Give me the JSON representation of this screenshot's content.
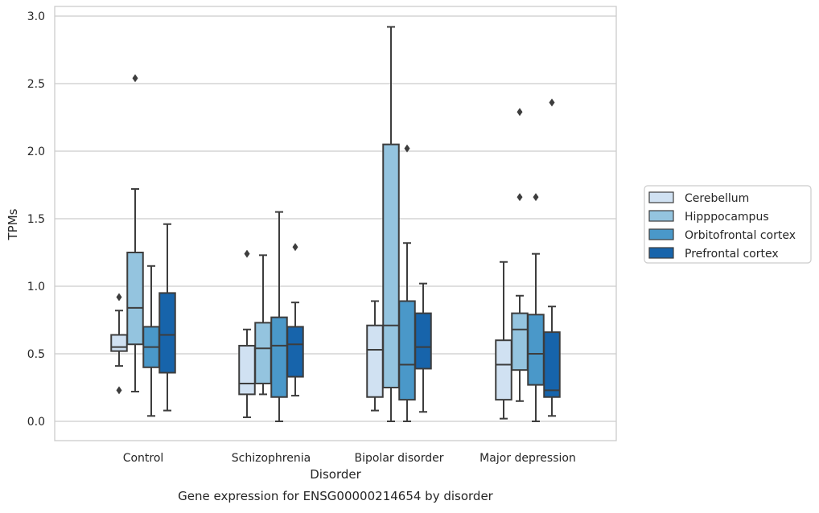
{
  "chart_data": {
    "type": "boxplot",
    "xlabel": "Disorder",
    "ylabel": "TPMs",
    "caption": "Gene expression for ENSG00000214654 by disorder",
    "ylim": [
      -0.14,
      3.07
    ],
    "yticks": [
      0.0,
      0.5,
      1.0,
      1.5,
      2.0,
      2.5,
      3.0
    ],
    "ytick_labels": [
      "0.0",
      "0.5",
      "1.0",
      "1.5",
      "2.0",
      "2.5",
      "3.0"
    ],
    "grid": "horizontal",
    "legend_position": "right",
    "categories": [
      "Control",
      "Schizophrenia",
      "Bipolar disorder",
      "Major depression"
    ],
    "series": [
      {
        "name": "Cerebellum",
        "color": "#d0e1f2",
        "boxes": [
          {
            "whisker_low": 0.41,
            "q1": 0.52,
            "median": 0.55,
            "q3": 0.64,
            "whisker_high": 0.82,
            "fliers": [
              0.92,
              0.23
            ]
          },
          {
            "whisker_low": 0.03,
            "q1": 0.2,
            "median": 0.28,
            "q3": 0.56,
            "whisker_high": 0.68,
            "fliers": [
              1.24
            ]
          },
          {
            "whisker_low": 0.08,
            "q1": 0.18,
            "median": 0.53,
            "q3": 0.71,
            "whisker_high": 0.89,
            "fliers": []
          },
          {
            "whisker_low": 0.02,
            "q1": 0.16,
            "median": 0.42,
            "q3": 0.6,
            "whisker_high": 1.18,
            "fliers": []
          }
        ]
      },
      {
        "name": "Hipppocampus",
        "color": "#94c4df",
        "boxes": [
          {
            "whisker_low": 0.22,
            "q1": 0.57,
            "median": 0.84,
            "q3": 1.25,
            "whisker_high": 1.72,
            "fliers": [
              2.54
            ]
          },
          {
            "whisker_low": 0.2,
            "q1": 0.28,
            "median": 0.54,
            "q3": 0.73,
            "whisker_high": 1.23,
            "fliers": []
          },
          {
            "whisker_low": 0.0,
            "q1": 0.25,
            "median": 0.71,
            "q3": 2.05,
            "whisker_high": 2.92,
            "fliers": []
          },
          {
            "whisker_low": 0.15,
            "q1": 0.38,
            "median": 0.68,
            "q3": 0.8,
            "whisker_high": 0.93,
            "fliers": [
              1.66,
              2.29
            ]
          }
        ]
      },
      {
        "name": "Orbitofrontal cortex",
        "color": "#4a98c9",
        "boxes": [
          {
            "whisker_low": 0.04,
            "q1": 0.4,
            "median": 0.55,
            "q3": 0.7,
            "whisker_high": 1.15,
            "fliers": []
          },
          {
            "whisker_low": 0.0,
            "q1": 0.18,
            "median": 0.56,
            "q3": 0.77,
            "whisker_high": 1.55,
            "fliers": []
          },
          {
            "whisker_low": 0.0,
            "q1": 0.16,
            "median": 0.42,
            "q3": 0.89,
            "whisker_high": 1.32,
            "fliers": [
              2.02
            ]
          },
          {
            "whisker_low": 0.0,
            "q1": 0.27,
            "median": 0.5,
            "q3": 0.79,
            "whisker_high": 1.24,
            "fliers": [
              1.66
            ]
          }
        ]
      },
      {
        "name": "Prefrontal cortex",
        "color": "#1764ab",
        "boxes": [
          {
            "whisker_low": 0.08,
            "q1": 0.36,
            "median": 0.64,
            "q3": 0.95,
            "whisker_high": 1.46,
            "fliers": []
          },
          {
            "whisker_low": 0.19,
            "q1": 0.33,
            "median": 0.57,
            "q3": 0.7,
            "whisker_high": 0.88,
            "fliers": [
              1.29
            ]
          },
          {
            "whisker_low": 0.07,
            "q1": 0.39,
            "median": 0.55,
            "q3": 0.8,
            "whisker_high": 1.02,
            "fliers": []
          },
          {
            "whisker_low": 0.04,
            "q1": 0.18,
            "median": 0.23,
            "q3": 0.66,
            "whisker_high": 0.85,
            "fliers": [
              2.36
            ]
          }
        ]
      }
    ]
  }
}
